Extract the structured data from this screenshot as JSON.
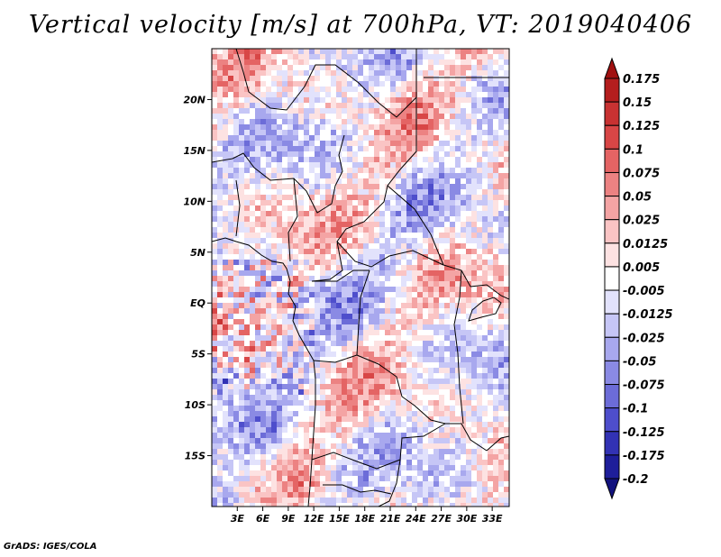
{
  "chart_data": {
    "type": "heatmap",
    "title": "Vertical velocity [m/s] at 700hPa, VT: 2019040406",
    "variable": "Vertical velocity",
    "units": "m/s",
    "level": "700hPa",
    "valid_time": "2019040406",
    "xlabel": "",
    "ylabel": "",
    "x_ticks": [
      "3E",
      "6E",
      "9E",
      "12E",
      "15E",
      "18E",
      "21E",
      "24E",
      "27E",
      "30E",
      "33E"
    ],
    "x_tick_values": [
      3,
      6,
      9,
      12,
      15,
      18,
      21,
      24,
      27,
      30,
      33
    ],
    "xlim": [
      0,
      35
    ],
    "y_ticks": [
      "20N",
      "15N",
      "10N",
      "5N",
      "EQ",
      "5S",
      "10S",
      "15S"
    ],
    "y_tick_values": [
      20,
      15,
      10,
      5,
      0,
      -5,
      -10,
      -15
    ],
    "ylim": [
      -20,
      25
    ],
    "colorbar": {
      "levels": [
        "0.175",
        "0.15",
        "0.125",
        "0.1",
        "0.075",
        "0.05",
        "0.025",
        "0.0125",
        "0.005",
        "-0.005",
        "-0.0125",
        "-0.025",
        "-0.05",
        "-0.075",
        "-0.1",
        "-0.125",
        "-0.175",
        "-0.2"
      ],
      "colors": [
        "#a01010",
        "#b41e1e",
        "#c83232",
        "#d84646",
        "#e46464",
        "#ec8282",
        "#f4a4a4",
        "#fac4c4",
        "#fde2e2",
        "#ffffff",
        "#e2e2fc",
        "#c6c6f6",
        "#a8a8ee",
        "#8a8ae4",
        "#6c6cd8",
        "#4e4ecc",
        "#3232b4",
        "#1e1e9a",
        "#12127e"
      ]
    }
  },
  "credit": "GrADS: IGES/COLA"
}
